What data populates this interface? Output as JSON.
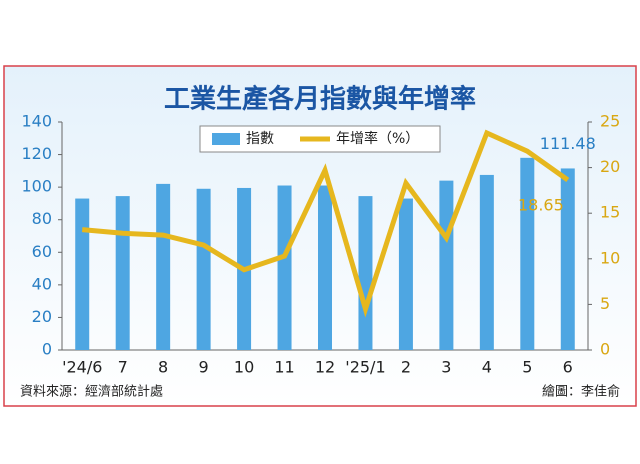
{
  "chart_data": {
    "type": "bar-line",
    "title": "工業生產各月指數與年增率",
    "categories": [
      "'24/6",
      "7",
      "8",
      "9",
      "10",
      "11",
      "12",
      "'25/1",
      "2",
      "3",
      "4",
      "5",
      "6"
    ],
    "series": [
      {
        "name": "指數",
        "type": "bar",
        "color": "#4ea6e2",
        "axis": "y",
        "values": [
          93,
          94.5,
          102,
          99,
          99.5,
          101,
          101,
          94.5,
          93,
          104,
          107.5,
          118,
          111.48
        ],
        "value_labels": [
          null,
          null,
          null,
          null,
          null,
          null,
          null,
          null,
          null,
          null,
          null,
          null,
          "111.48"
        ]
      },
      {
        "name": "年增率（%）",
        "type": "line",
        "color": "#e6b71e",
        "axis": "y2",
        "values": [
          13.2,
          12.8,
          12.6,
          11.5,
          8.8,
          10.3,
          19.7,
          4.5,
          18.3,
          12.3,
          23.8,
          21.8,
          18.65
        ],
        "value_labels": [
          null,
          null,
          null,
          null,
          null,
          null,
          null,
          null,
          null,
          null,
          null,
          null,
          "18.65"
        ]
      }
    ],
    "ylim": [
      0,
      140
    ],
    "yticks": [
      0,
      20,
      40,
      60,
      80,
      100,
      120,
      140
    ],
    "y2lim": [
      0,
      25
    ],
    "y2ticks": [
      0,
      5,
      10,
      15,
      20,
      25
    ],
    "source": "資料來源：經濟部統計處",
    "credit": "繪圖：李佳俞"
  }
}
